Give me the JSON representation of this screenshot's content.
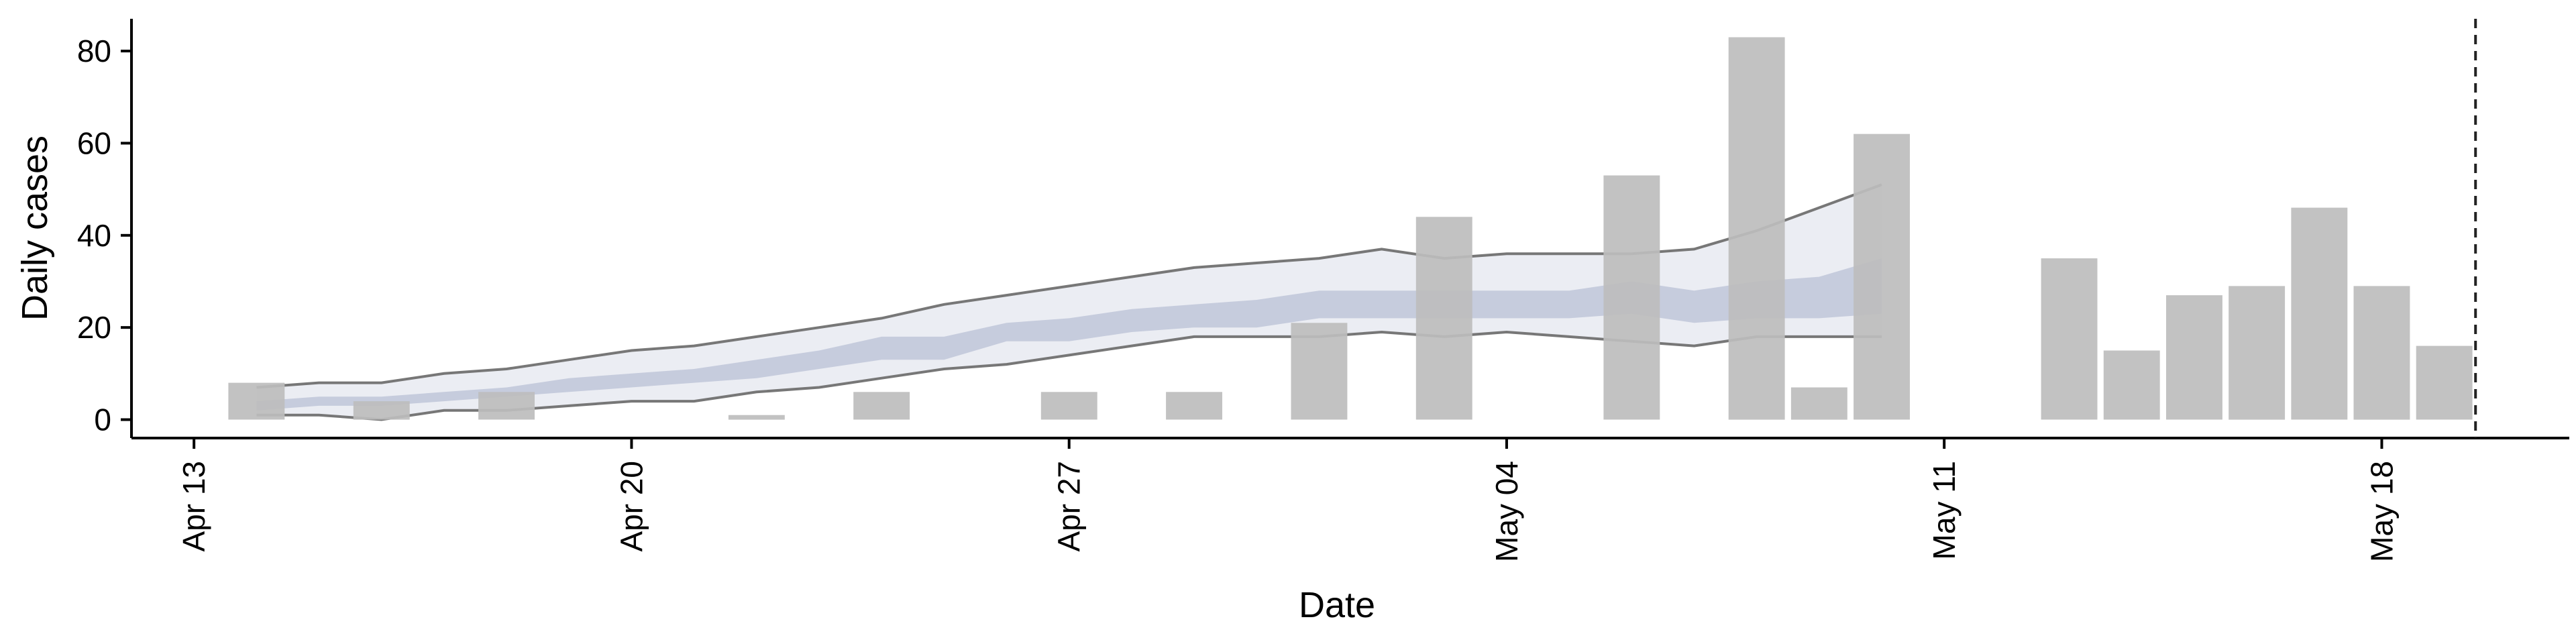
{
  "chart_data": {
    "type": "bar",
    "xlabel": "Date",
    "ylabel": "Daily cases",
    "x_tick_labels": [
      {
        "date": "2020-04-13",
        "label": "Apr 13"
      },
      {
        "date": "2020-04-20",
        "label": "Apr 20"
      },
      {
        "date": "2020-04-27",
        "label": "Apr 27"
      },
      {
        "date": "2020-05-04",
        "label": "May 04"
      },
      {
        "date": "2020-05-11",
        "label": "May 11"
      },
      {
        "date": "2020-05-18",
        "label": "May 18"
      }
    ],
    "y_ticks": [
      0,
      20,
      40,
      60,
      80
    ],
    "ylim": [
      -4,
      87
    ],
    "xlim": [
      "2020-04-12",
      "2020-05-21"
    ],
    "grid": false,
    "colors": {
      "bars": "#bdbdbd",
      "band_outer": "#e8eaf1",
      "band_inner": "#b9c0d6",
      "band_lines": "#777777",
      "axis": "#000000"
    },
    "cutoff_date": "2020-05-19",
    "bars": [
      {
        "date": "2020-04-14",
        "value": 8
      },
      {
        "date": "2020-04-16",
        "value": 4
      },
      {
        "date": "2020-04-18",
        "value": 6
      },
      {
        "date": "2020-04-22",
        "value": 1
      },
      {
        "date": "2020-04-24",
        "value": 6
      },
      {
        "date": "2020-04-27",
        "value": 6
      },
      {
        "date": "2020-04-29",
        "value": 6
      },
      {
        "date": "2020-05-01",
        "value": 21
      },
      {
        "date": "2020-05-03",
        "value": 44
      },
      {
        "date": "2020-05-06",
        "value": 53
      },
      {
        "date": "2020-05-08",
        "value": 83
      },
      {
        "date": "2020-05-09",
        "value": 7
      },
      {
        "date": "2020-05-10",
        "value": 62
      },
      {
        "date": "2020-05-13",
        "value": 35
      },
      {
        "date": "2020-05-14",
        "value": 15
      },
      {
        "date": "2020-05-15",
        "value": 27
      },
      {
        "date": "2020-05-16",
        "value": 29
      },
      {
        "date": "2020-05-17",
        "value": 46
      },
      {
        "date": "2020-05-18",
        "value": 29
      },
      {
        "date": "2020-05-19",
        "value": 16
      }
    ],
    "estimate_band": {
      "dates": [
        "2020-04-14",
        "2020-04-15",
        "2020-04-16",
        "2020-04-17",
        "2020-04-18",
        "2020-04-19",
        "2020-04-20",
        "2020-04-21",
        "2020-04-22",
        "2020-04-23",
        "2020-04-24",
        "2020-04-25",
        "2020-04-26",
        "2020-04-27",
        "2020-04-28",
        "2020-04-29",
        "2020-04-30",
        "2020-05-01",
        "2020-05-02",
        "2020-05-03",
        "2020-05-04",
        "2020-05-05",
        "2020-05-06",
        "2020-05-07",
        "2020-05-08",
        "2020-05-09",
        "2020-05-10"
      ],
      "outer_lower": [
        1,
        1,
        0,
        2,
        2,
        3,
        4,
        4,
        6,
        7,
        9,
        11,
        12,
        14,
        16,
        18,
        18,
        18,
        19,
        18,
        19,
        18,
        17,
        16,
        18,
        18,
        18
      ],
      "outer_upper": [
        7,
        8,
        8,
        10,
        11,
        13,
        15,
        16,
        18,
        20,
        22,
        25,
        27,
        29,
        31,
        33,
        34,
        35,
        37,
        35,
        36,
        36,
        36,
        37,
        41,
        46,
        51
      ],
      "inner_lower": [
        2,
        3,
        3,
        4,
        5,
        6,
        7,
        8,
        9,
        11,
        13,
        13,
        17,
        17,
        19,
        20,
        20,
        22,
        22,
        22,
        22,
        22,
        23,
        21,
        22,
        22,
        23
      ],
      "inner_upper": [
        4,
        5,
        5,
        6,
        7,
        9,
        10,
        11,
        13,
        15,
        18,
        18,
        21,
        22,
        24,
        25,
        26,
        28,
        28,
        28,
        28,
        28,
        30,
        28,
        30,
        31,
        35
      ]
    }
  }
}
